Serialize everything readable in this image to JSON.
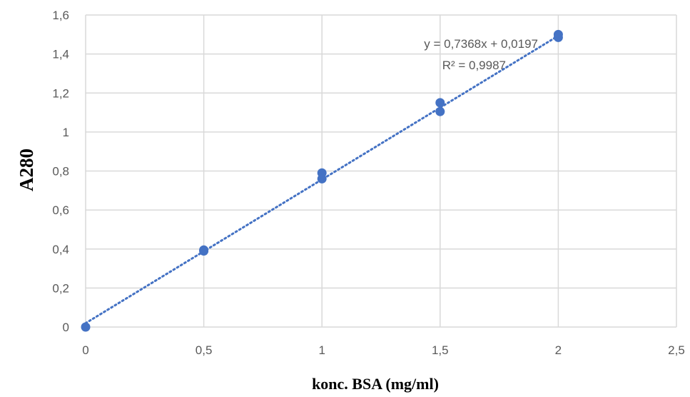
{
  "chart_data": {
    "type": "scatter",
    "title": "",
    "xlabel": "konc. BSA (mg/ml)",
    "ylabel": "A280",
    "xlim": [
      0,
      2.5
    ],
    "ylim": [
      0,
      1.6
    ],
    "x_ticks": [
      "0",
      "0,5",
      "1",
      "1,5",
      "2",
      "2,5"
    ],
    "y_ticks": [
      "0",
      "0,2",
      "0,4",
      "0,6",
      "0,8",
      "1",
      "1,2",
      "1,4",
      "1,6"
    ],
    "x_tick_values": [
      0,
      0.5,
      1,
      1.5,
      2,
      2.5
    ],
    "y_tick_values": [
      0,
      0.2,
      0.4,
      0.6,
      0.8,
      1,
      1.2,
      1.4,
      1.6
    ],
    "grid": true,
    "series": [
      {
        "x": [
          0,
          0.5,
          0.5,
          1,
          1,
          1.5,
          1.5,
          2,
          2
        ],
        "y": [
          0,
          0.39,
          0.395,
          0.79,
          0.76,
          1.15,
          1.105,
          1.5,
          1.485
        ],
        "color": "#4472C4"
      }
    ],
    "trendline": {
      "type": "linear",
      "slope": 0.7368,
      "intercept": 0.0197,
      "x_range": [
        0,
        2
      ],
      "style": "dotted",
      "color": "#4472C4",
      "equation": "y = 0,7368x + 0,0197",
      "r_squared": "R² = 0,9987"
    },
    "colors": {
      "gridline": "#d9d9d9",
      "tick_text": "#595959",
      "marker": "#4472C4"
    }
  }
}
